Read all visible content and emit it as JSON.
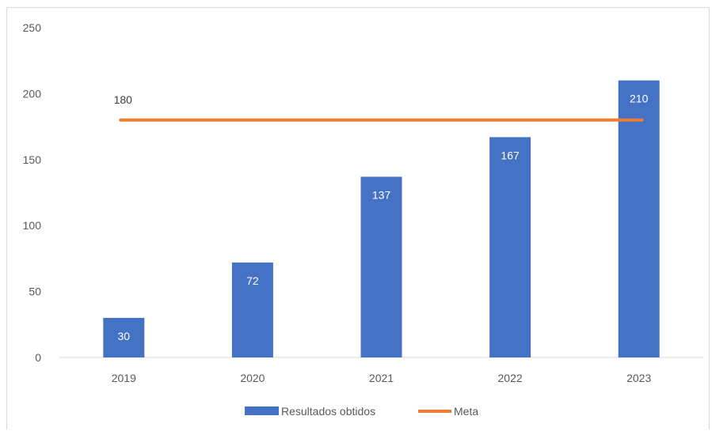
{
  "chart_data": {
    "type": "bar",
    "title": "",
    "xlabel": "",
    "ylabel": "",
    "categories": [
      "2019",
      "2020",
      "2021",
      "2022",
      "2023"
    ],
    "ylim": [
      0,
      250
    ],
    "yticks": [
      0,
      50,
      100,
      150,
      200,
      250
    ],
    "grid": false,
    "legend_position": "bottom",
    "series": [
      {
        "name": "Resultados obtidos",
        "kind": "bar",
        "color": "#4472c4",
        "label_color": "#ffffff",
        "values": [
          30,
          72,
          137,
          167,
          210
        ]
      },
      {
        "name": "Meta",
        "kind": "line",
        "color": "#ed7d31",
        "label_color": "#404040",
        "values": [
          180,
          180,
          180,
          180,
          180
        ],
        "labeled_points": [
          0
        ]
      }
    ]
  }
}
